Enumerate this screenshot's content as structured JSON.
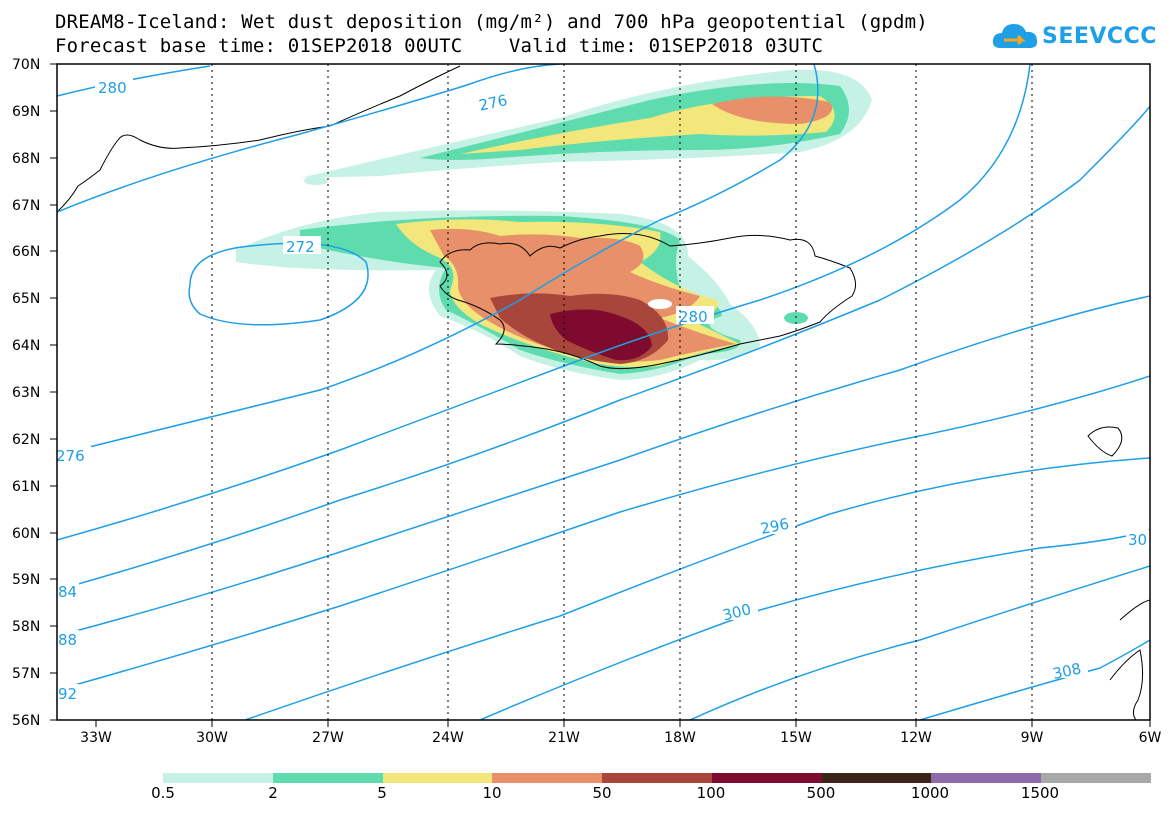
{
  "title": {
    "line1": "DREAM8-Iceland: Wet dust deposition (mg/m²) and 700 hPa geopotential (gpdm)",
    "line2": "Forecast base time: 01SEP2018 00UTC    Valid time: 01SEP2018 03UTC"
  },
  "logo": {
    "text": "SEEVCCC",
    "icon": "cloud-arrow-icon"
  },
  "map": {
    "lat_labels": [
      "70N",
      "69N",
      "68N",
      "67N",
      "66N",
      "65N",
      "64N",
      "63N",
      "62N",
      "61N",
      "60N",
      "59N",
      "58N",
      "57N",
      "56N"
    ],
    "lon_labels": [
      "33W",
      "30W",
      "27W",
      "24W",
      "21W",
      "18W",
      "15W",
      "12W",
      "9W",
      "6W"
    ],
    "contour_labels": [
      {
        "id": "c280a",
        "text": "280"
      },
      {
        "id": "c276a",
        "text": "276"
      },
      {
        "id": "c272",
        "text": "272"
      },
      {
        "id": "c276b",
        "text": "276"
      },
      {
        "id": "c280b",
        "text": "280"
      },
      {
        "id": "c284",
        "text": "84"
      },
      {
        "id": "c288",
        "text": "88"
      },
      {
        "id": "c292",
        "text": "92"
      },
      {
        "id": "c296",
        "text": "296"
      },
      {
        "id": "c300",
        "text": "300"
      },
      {
        "id": "c304",
        "text": "30"
      },
      {
        "id": "c308",
        "text": "308"
      }
    ],
    "contour_color": "#1e9fe6"
  },
  "legend": {
    "colors": [
      "#c6f2e6",
      "#5edcae",
      "#f3e67a",
      "#e8906a",
      "#a8463c",
      "#7e0a2e",
      "#3c2418",
      "#8e6aa8",
      "#a8a8a8"
    ],
    "labels": [
      "0.5",
      "2",
      "5",
      "10",
      "50",
      "100",
      "500",
      "1000",
      "1500"
    ]
  }
}
